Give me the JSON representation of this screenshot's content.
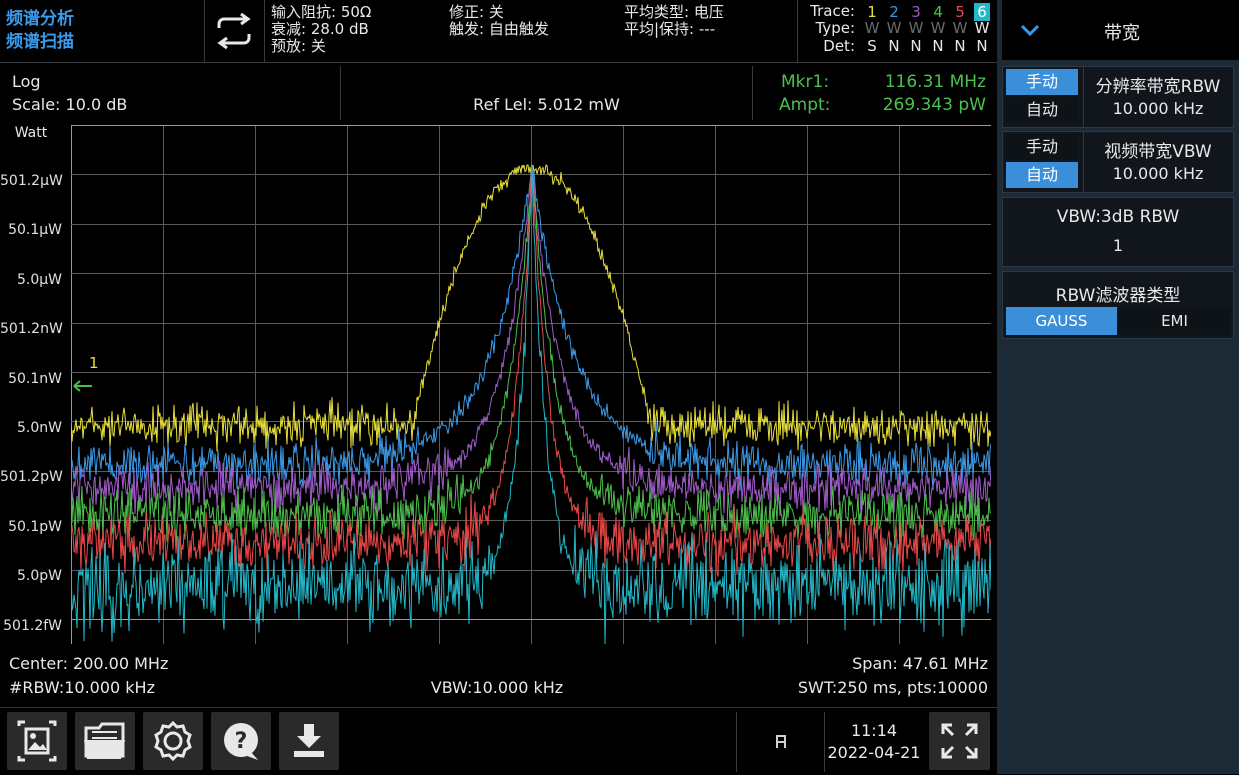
{
  "mode": {
    "line1": "频谱分析",
    "line2": "频谱扫描"
  },
  "params": {
    "impedance": "输入阻抗: 50Ω",
    "atten": "衰减: 28.0 dB",
    "preamp": "预放: 关",
    "correction": "修正: 关",
    "trigger": "触发: 自由触发",
    "avg_type": "平均类型: 电压",
    "avg_hold": "平均|保持: ---"
  },
  "trace_table": {
    "row_labels": [
      "Trace:",
      "Type:",
      "Det:"
    ],
    "numbers": [
      "1",
      "2",
      "3",
      "4",
      "5",
      "6"
    ],
    "types": [
      "W",
      "W",
      "W",
      "W",
      "W",
      "W"
    ],
    "dets": [
      "S",
      "N",
      "N",
      "N",
      "N",
      "N"
    ],
    "colors": [
      "#e8e03a",
      "#3a9ae8",
      "#a05ac8",
      "#4cc04c",
      "#e84848",
      "#22b8c8"
    ]
  },
  "graph_header": {
    "scale_type": "Log",
    "scale": "Scale: 10.0 dB",
    "ref_level": "Ref Lel: 5.012 mW",
    "marker_label": "Mkr1:",
    "marker_freq": "116.31 MHz",
    "ampt_label": "Ampt:",
    "ampt_value": "269.343 pW"
  },
  "y_axis": {
    "unit": "Watt",
    "ticks": [
      "501.2μW",
      "50.1μW",
      "5.0μW",
      "501.2nW",
      "50.1nW",
      "5.0nW",
      "501.2pW",
      "50.1pW",
      "5.0pW",
      "501.2fW"
    ]
  },
  "marker": {
    "label": "1"
  },
  "footer": {
    "center": "Center: 200.00 MHz",
    "span": "Span: 47.61 MHz",
    "rbw": "#RBW:10.000 kHz",
    "vbw": "VBW:10.000 kHz",
    "swt": "SWT:250 ms, pts:10000"
  },
  "bottom": {
    "time": "11:14",
    "date": "2022-04-21",
    "icons": [
      "screenshot-icon",
      "folder-icon",
      "settings-icon",
      "help-icon",
      "download-icon"
    ]
  },
  "panel": {
    "title": "带宽",
    "rbw": {
      "manual": "手动",
      "auto": "自动",
      "label": "分辨率带宽RBW",
      "value": "10.000 kHz",
      "selected": "manual"
    },
    "vbw": {
      "manual": "手动",
      "auto": "自动",
      "label": "视频带宽VBW",
      "value": "10.000 kHz",
      "selected": "auto"
    },
    "ratio": {
      "label": "VBW:3dB RBW",
      "value": "1"
    },
    "filter": {
      "label": "RBW滤波器类型",
      "options": [
        "GAUSS",
        "EMI"
      ],
      "selected": "GAUSS"
    }
  },
  "accent_color": "#3a8fd8"
}
